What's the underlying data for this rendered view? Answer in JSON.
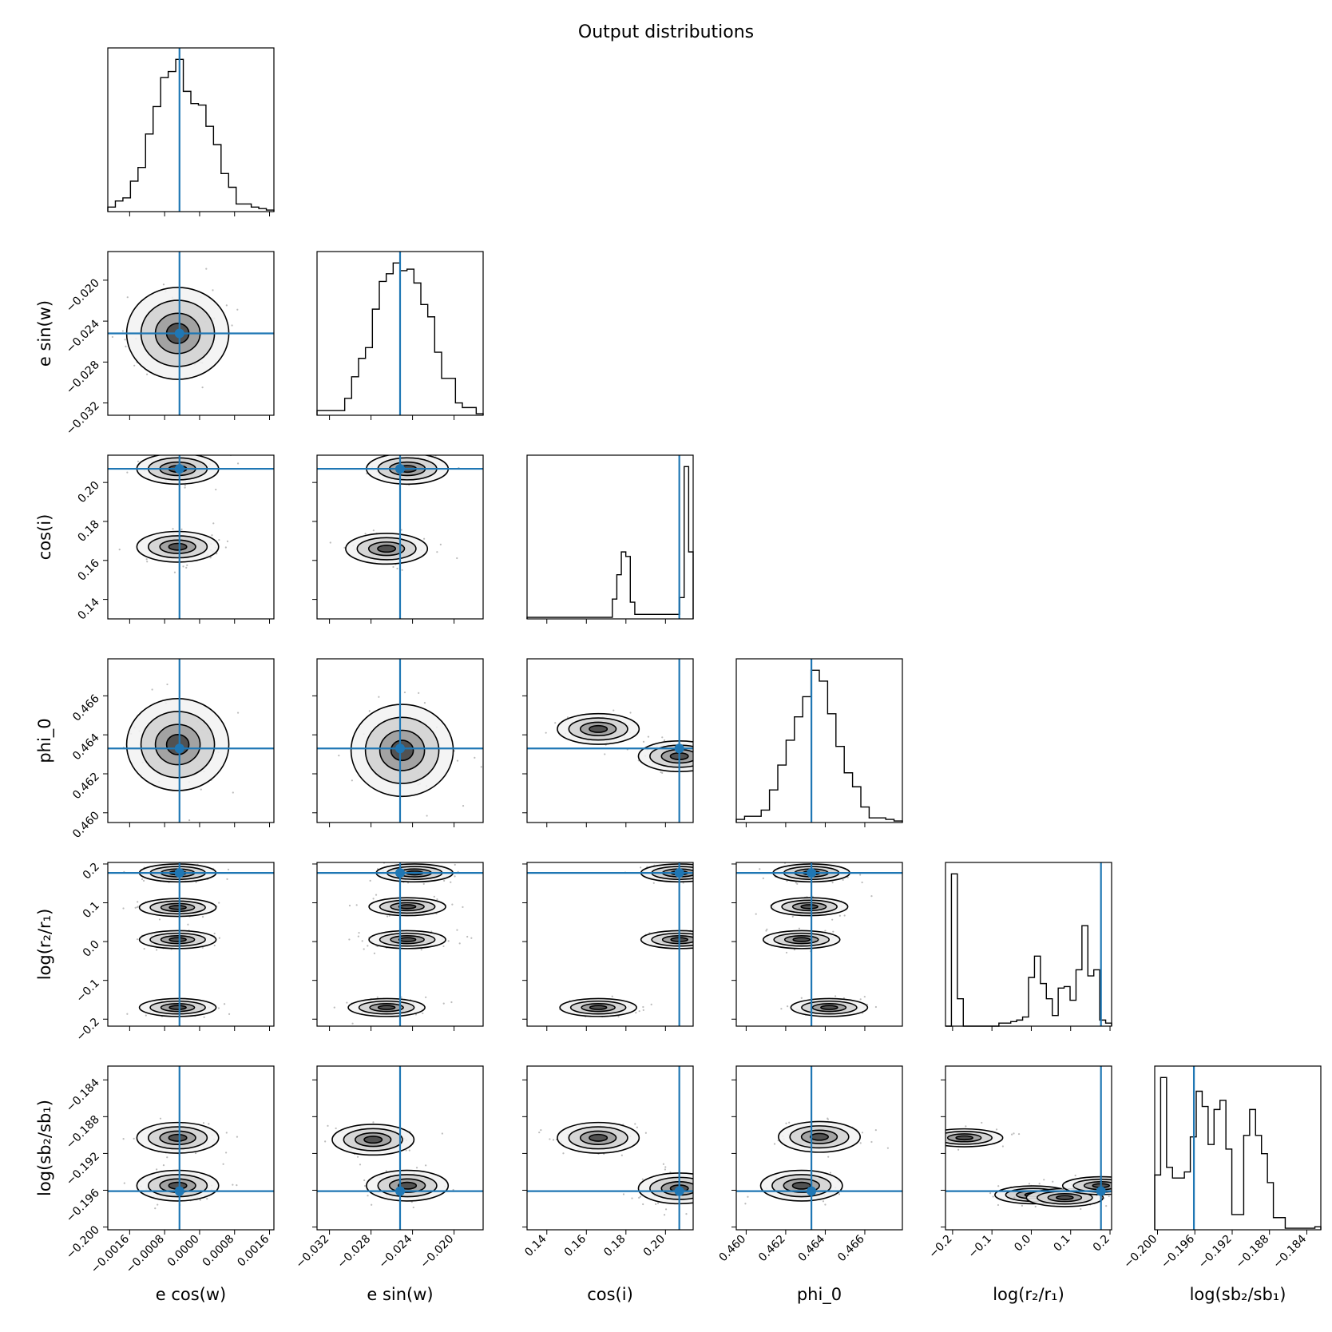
{
  "figure": {
    "title": "Output distributions"
  },
  "colors": {
    "truth_line": "#1f77b4",
    "contour": "#000000",
    "scatter": "#bbbbbb",
    "hist_outline": "#000000"
  },
  "chart_data": {
    "type": "corner",
    "title": "Output distributions",
    "parameters": [
      {
        "key": "ecos",
        "label": "e cos(w)",
        "range": [
          -0.0021,
          0.0017
        ],
        "truth": -0.00046,
        "ticks": [
          -0.0016,
          -0.0008,
          0.0,
          0.0008,
          0.0016
        ],
        "tick_labels": [
          "−0.0016",
          "−0.0008",
          "0.0000",
          "0.0008",
          "0.0016"
        ]
      },
      {
        "key": "esin",
        "label": "e sin(w)",
        "range": [
          -0.0332,
          -0.0172
        ],
        "truth": -0.0252,
        "ticks": [
          -0.032,
          -0.028,
          -0.024,
          -0.02
        ],
        "tick_labels": [
          "−0.032",
          "−0.028",
          "−0.024",
          "−0.020"
        ]
      },
      {
        "key": "cosi",
        "label": "cos(i)",
        "range": [
          0.13,
          0.214
        ],
        "truth": 0.207,
        "ticks": [
          0.14,
          0.16,
          0.18,
          0.2
        ],
        "tick_labels": [
          "0.14",
          "0.16",
          "0.18",
          "0.20"
        ]
      },
      {
        "key": "phi0",
        "label": "phi_0",
        "range": [
          0.4595,
          0.4679
        ],
        "truth": 0.4633,
        "ticks": [
          0.46,
          0.462,
          0.464,
          0.466
        ],
        "tick_labels": [
          "0.460",
          "0.462",
          "0.464",
          "0.466"
        ]
      },
      {
        "key": "logr",
        "label": "log(r₂/r₁)",
        "range": [
          -0.218,
          0.204
        ],
        "truth": 0.177,
        "ticks": [
          -0.2,
          -0.1,
          0.0,
          0.1,
          0.2
        ],
        "tick_labels": [
          "−0.2",
          "−0.1",
          "0.0",
          "0.1",
          "0.2"
        ]
      },
      {
        "key": "logsb",
        "label": "log(sb₂/sb₁)",
        "range": [
          -0.2003,
          -0.1825
        ],
        "truth": -0.1961,
        "ticks": [
          -0.2,
          -0.196,
          -0.192,
          -0.188,
          -0.184
        ],
        "tick_labels": [
          "−0.200",
          "−0.196",
          "−0.192",
          "−0.188",
          "−0.184"
        ]
      }
    ],
    "histograms": [
      {
        "param": "ecos",
        "heights": [
          3,
          7,
          9,
          20,
          29,
          51,
          69,
          88,
          92,
          100,
          79,
          71,
          70,
          56,
          44,
          25,
          16,
          5,
          5,
          3,
          2,
          1
        ]
      },
      {
        "param": "esin",
        "heights": [
          3,
          3,
          3,
          3,
          11,
          25,
          37,
          44,
          69,
          87,
          92,
          99,
          94,
          95,
          86,
          72,
          64,
          41,
          24,
          24,
          8,
          5,
          5,
          1
        ]
      },
      {
        "param": "cosi",
        "heights": [
          1,
          1,
          1,
          1,
          1,
          1,
          1,
          1,
          1,
          1,
          1,
          1,
          1,
          1,
          1,
          1,
          1,
          1,
          1,
          13,
          29,
          44,
          41,
          11,
          3,
          3,
          3,
          3,
          3,
          3,
          3,
          3,
          3,
          3,
          14,
          100,
          44
        ]
      },
      {
        "param": "phi0",
        "heights": [
          2,
          4,
          4,
          8,
          21,
          37,
          53,
          68,
          81,
          98,
          91,
          70,
          49,
          32,
          23,
          10,
          3,
          3,
          2,
          1
        ]
      },
      {
        "param": "logr",
        "heights": [
          0,
          100,
          18,
          0,
          0,
          0,
          0,
          0,
          0,
          2,
          2,
          3,
          4,
          6,
          32,
          46,
          28,
          18,
          7,
          25,
          26,
          17,
          37,
          66,
          33,
          37,
          4,
          2
        ]
      },
      {
        "param": "logsb",
        "heights": [
          36,
          100,
          41,
          34,
          34,
          38,
          61,
          91,
          81,
          56,
          79,
          85,
          53,
          10,
          10,
          62,
          79,
          62,
          50,
          31,
          8,
          8,
          1,
          1,
          1,
          1,
          1,
          2
        ]
      }
    ],
    "density_modes": [
      {
        "pair": [
          "esin",
          "ecos"
        ],
        "centers": [
          [
            -0.0005,
            -0.0252
          ]
        ]
      },
      {
        "pair": [
          "cosi",
          "ecos"
        ],
        "centers": [
          [
            -0.0005,
            0.207
          ],
          [
            -0.0005,
            0.167
          ]
        ]
      },
      {
        "pair": [
          "cosi",
          "esin"
        ],
        "centers": [
          [
            -0.0245,
            0.207
          ],
          [
            -0.0265,
            0.166
          ]
        ]
      },
      {
        "pair": [
          "phi0",
          "ecos"
        ],
        "centers": [
          [
            -0.0005,
            0.4635
          ]
        ]
      },
      {
        "pair": [
          "phi0",
          "esin"
        ],
        "centers": [
          [
            -0.025,
            0.4632
          ]
        ]
      },
      {
        "pair": [
          "phi0",
          "cosi"
        ],
        "centers": [
          [
            0.166,
            0.4643
          ],
          [
            0.207,
            0.4629
          ]
        ]
      },
      {
        "pair": [
          "logr",
          "ecos"
        ],
        "centers": [
          [
            -0.0005,
            0.177
          ],
          [
            -0.0005,
            0.088
          ],
          [
            -0.0005,
            0.005
          ],
          [
            -0.0005,
            -0.17
          ]
        ]
      },
      {
        "pair": [
          "logr",
          "esin"
        ],
        "centers": [
          [
            -0.0238,
            0.177
          ],
          [
            -0.0245,
            0.09
          ],
          [
            -0.0245,
            0.005
          ],
          [
            -0.0265,
            -0.17
          ]
        ]
      },
      {
        "pair": [
          "logr",
          "cosi"
        ],
        "centers": [
          [
            0.207,
            0.177
          ],
          [
            0.207,
            0.005
          ],
          [
            0.166,
            -0.17
          ]
        ]
      },
      {
        "pair": [
          "logr",
          "phi0"
        ],
        "centers": [
          [
            0.4633,
            0.177
          ],
          [
            0.4632,
            0.09
          ],
          [
            0.4628,
            0.005
          ],
          [
            0.4642,
            -0.17
          ]
        ]
      },
      {
        "pair": [
          "logsb",
          "ecos"
        ],
        "centers": [
          [
            -0.0005,
            -0.1903
          ],
          [
            -0.0005,
            -0.1955
          ]
        ]
      },
      {
        "pair": [
          "logsb",
          "esin"
        ],
        "centers": [
          [
            -0.0278,
            -0.1905
          ],
          [
            -0.0245,
            -0.1955
          ]
        ]
      },
      {
        "pair": [
          "logsb",
          "cosi"
        ],
        "centers": [
          [
            0.166,
            -0.1903
          ],
          [
            0.207,
            -0.1958
          ]
        ]
      },
      {
        "pair": [
          "logsb",
          "phi0"
        ],
        "centers": [
          [
            0.4637,
            -0.1902
          ],
          [
            0.4628,
            -0.1955
          ]
        ]
      },
      {
        "pair": [
          "logsb",
          "logr"
        ],
        "centers": [
          [
            -0.17,
            -0.1903
          ],
          [
            0.005,
            -0.1965
          ],
          [
            0.085,
            -0.1968
          ],
          [
            0.177,
            -0.1955
          ]
        ]
      }
    ]
  }
}
